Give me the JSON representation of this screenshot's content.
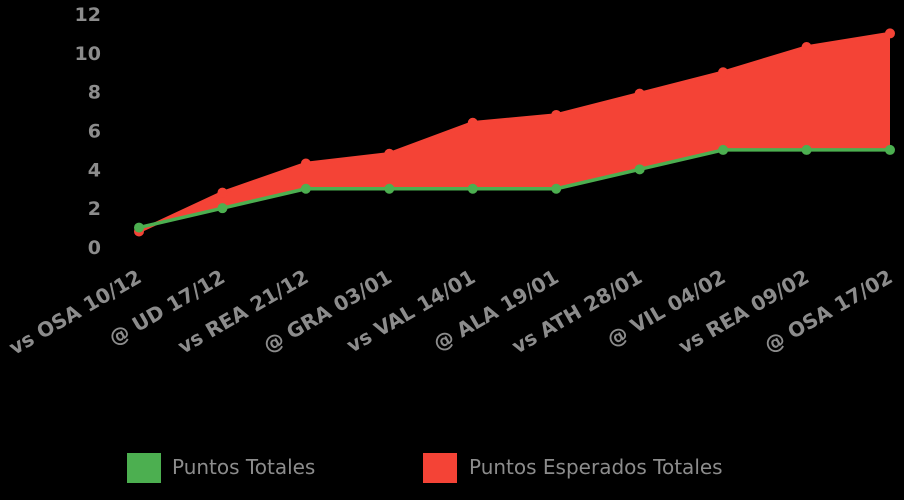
{
  "chart_data": {
    "type": "area",
    "categories": [
      "vs OSA 10/12",
      "@ UD 17/12",
      "vs REA 21/12",
      "@ GRA 03/01",
      "vs VAL 14/01",
      "@ ALA 19/01",
      "vs ATH 28/01",
      "@ VIL 04/02",
      "vs REA 09/02",
      "@ OSA 17/02"
    ],
    "series": [
      {
        "name": "Puntos Totales",
        "values": [
          1,
          2,
          3,
          3,
          3,
          3,
          4,
          5,
          5,
          5
        ],
        "color": "#4caf50"
      },
      {
        "name": "Puntos Esperados Totales",
        "values": [
          0.8,
          2.8,
          4.3,
          4.8,
          6.4,
          6.8,
          7.9,
          9.0,
          10.3,
          11.0
        ],
        "color": "#f44336"
      }
    ],
    "yticks": [
      "0",
      "2",
      "4",
      "6",
      "8",
      "10",
      "12"
    ],
    "ylim": [
      0,
      12
    ],
    "grid": false,
    "legend_position": "bottom"
  }
}
